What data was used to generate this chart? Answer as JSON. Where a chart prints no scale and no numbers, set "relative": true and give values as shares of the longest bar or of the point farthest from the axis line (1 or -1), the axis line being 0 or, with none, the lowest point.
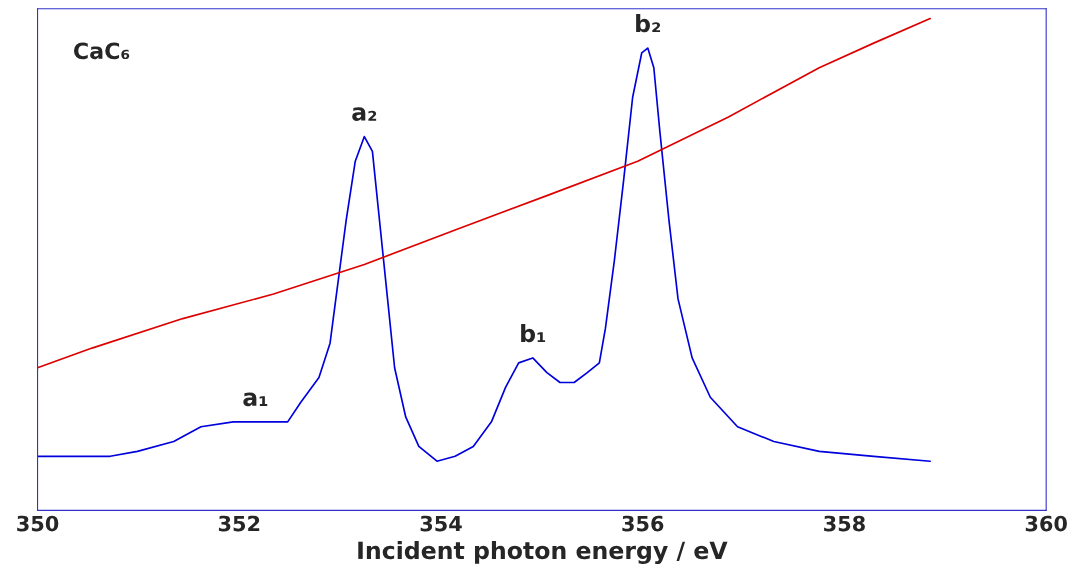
{
  "chart_data": {
    "type": "line",
    "relative": true,
    "xlabel": "Incident photon energy / eV",
    "x": [
      350.0,
      350.36,
      350.72,
      350.99,
      351.35,
      351.62,
      351.94,
      352.16,
      352.34,
      352.48,
      352.61,
      352.79,
      352.9,
      352.97,
      353.06,
      353.15,
      353.24,
      353.32,
      353.38,
      353.47,
      353.54,
      353.65,
      353.78,
      353.96,
      354.14,
      354.32,
      354.5,
      354.64,
      354.77,
      354.91,
      355.05,
      355.18,
      355.32,
      355.45,
      355.57,
      355.63,
      355.72,
      355.81,
      355.9,
      355.99,
      356.05,
      356.11,
      356.17,
      356.26,
      356.35,
      356.49,
      356.67,
      356.94,
      357.3,
      357.75,
      358.29,
      358.85
    ],
    "series": [
      {
        "color": "#0000dd",
        "values": [
          0.11,
          0.11,
          0.11,
          0.12,
          0.14,
          0.17,
          0.18,
          0.18,
          0.18,
          0.18,
          0.22,
          0.27,
          0.34,
          0.45,
          0.59,
          0.71,
          0.76,
          0.73,
          0.61,
          0.43,
          0.29,
          0.19,
          0.13,
          0.1,
          0.11,
          0.13,
          0.18,
          0.25,
          0.3,
          0.31,
          0.28,
          0.26,
          0.26,
          0.28,
          0.3,
          0.37,
          0.51,
          0.67,
          0.84,
          0.93,
          0.94,
          0.9,
          0.77,
          0.59,
          0.43,
          0.31,
          0.23,
          0.17,
          0.14,
          0.12,
          0.11,
          0.1
        ]
      },
      {
        "color": "#dd0000",
        "x": [
          350.0,
          350.54,
          351.44,
          352.34,
          353.24,
          354.14,
          355.05,
          355.95,
          356.85,
          357.75,
          358.29,
          358.85
        ],
        "values": [
          0.29,
          0.33,
          0.39,
          0.44,
          0.5,
          0.57,
          0.64,
          0.71,
          0.8,
          0.9,
          0.95,
          1.0
        ]
      }
    ],
    "xlim": [
      350,
      360
    ],
    "xticks": [
      350,
      352,
      354,
      356,
      358,
      360
    ],
    "tick_labels": "x",
    "grid": false,
    "legend": false,
    "annotations": [
      "CaC₆",
      {
        "text": "a₁",
        "x": 352.16,
        "y": 0.18
      },
      {
        "text": "a₂",
        "x": 353.24,
        "y": 0.76
      },
      {
        "text": "b₁",
        "x": 354.91,
        "y": 0.31
      },
      {
        "text": "b₂",
        "x": 356.05,
        "y": 0.94
      }
    ]
  }
}
